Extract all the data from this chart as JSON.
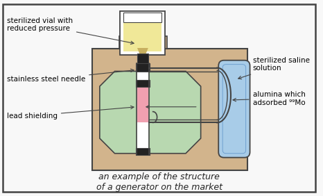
{
  "title": "an example of the structure\nof a generator on the market",
  "title_fontsize": 9,
  "bg_outer": "#d2b48c",
  "bg_inner": "#b8d8b0",
  "bg_vial": "#f0e898",
  "bg_pink": "#f0a0b0",
  "bg_blue": "#a8cce8",
  "bg_white": "#ffffff",
  "bg_fig": "#f8f8f8",
  "color_border": "#444444",
  "color_dark": "#222222",
  "color_tube": "#888888",
  "labels": {
    "vial": "sterilized vial with\nreduced pressure",
    "needle": "stainless steel needle",
    "shielding": "lead shielding",
    "saline": "sterilized saline\nsolution",
    "alumina": "alumina which\nadsorbed ⁹⁹Mo"
  },
  "label_fontsize": 7.5,
  "figsize": [
    4.66,
    2.82
  ],
  "dpi": 100
}
